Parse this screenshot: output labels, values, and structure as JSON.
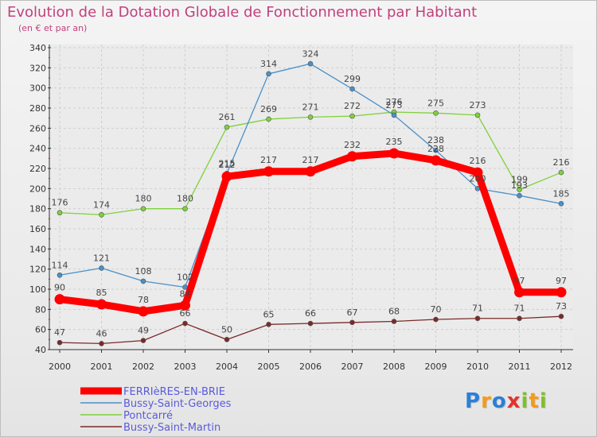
{
  "chart_data": {
    "type": "line",
    "title": "Evolution de la Dotation Globale de Fonctionnement par Habitant",
    "subtitle": "(en € et par an)",
    "xlabel": "",
    "ylabel": "",
    "x": [
      "2000",
      "2001",
      "2002",
      "2003",
      "2004",
      "2005",
      "2006",
      "2007",
      "2008",
      "2009",
      "2010",
      "2011",
      "2012"
    ],
    "ylim": [
      40,
      340
    ],
    "yticks": [
      40,
      60,
      80,
      100,
      120,
      140,
      160,
      180,
      200,
      220,
      240,
      260,
      280,
      300,
      320,
      340
    ],
    "grid": true,
    "legend_position": "bottom-left",
    "series": [
      {
        "name": "FERRIèRES-EN-BRIE",
        "color": "#ff0000",
        "values": [
          90,
          85,
          78,
          84,
          212,
          217,
          217,
          232,
          235,
          228,
          216,
          97,
          97
        ]
      },
      {
        "name": "Bussy-Saint-Georges",
        "color": "#4a90c8",
        "values": [
          114,
          121,
          108,
          102,
          215,
          314,
          324,
          299,
          273,
          238,
          200,
          193,
          185
        ]
      },
      {
        "name": "Pontcarré",
        "color": "#7fd13b",
        "values": [
          176,
          174,
          180,
          180,
          261,
          269,
          271,
          272,
          276,
          275,
          273,
          199,
          216
        ]
      },
      {
        "name": "Bussy-Saint-Martin",
        "color": "#7b2a2a",
        "values": [
          47,
          46,
          49,
          66,
          50,
          65,
          66,
          67,
          68,
          70,
          71,
          71,
          73
        ]
      }
    ]
  },
  "brand": {
    "letters": [
      "P",
      "r",
      "o",
      "x",
      "i",
      "t",
      "i"
    ],
    "colors": [
      "#2b7fd6",
      "#f29b1d",
      "#2b7fd6",
      "#e4322b",
      "#7fbf2a",
      "#f29b1d",
      "#7fbf2a"
    ]
  }
}
